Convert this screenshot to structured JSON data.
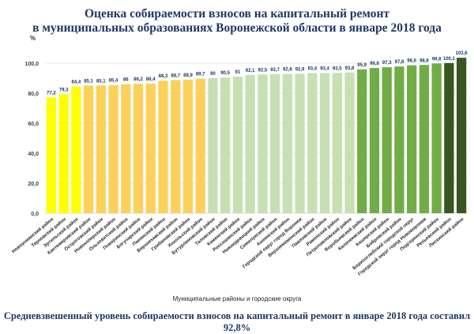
{
  "chart_data": {
    "type": "bar",
    "title": "Оценка собираемости взносов на капитальный ремонт",
    "subtitle": "в муниципальных образованиях Воронежской области в январе 2018 года",
    "ylabel": "%",
    "xlabel": "Муниципальные районы и городские округа",
    "ylim": [
      0,
      100
    ],
    "yticks": [
      "0,0",
      "20,0",
      "40,0",
      "60,0",
      "80,0",
      "100,0"
    ],
    "ytick_values": [
      0,
      20,
      40,
      60,
      80,
      100
    ],
    "grid": true,
    "categories": [
      "Новоусманский район",
      "Терновский район",
      "Эртильский район",
      "Кантемировский район",
      "Острогожский район",
      "Новохоперский район",
      "Ольховатский район",
      "Поворинский район",
      "Богучарский район",
      "Панинский район",
      "Верхнехавский район",
      "Грибановский район",
      "Хохольский район",
      "Бутурлиновский район",
      "Таловский район",
      "Каменский район",
      "Россошанский район",
      "Нижнедевицкий район",
      "Семилукский район",
      "Аннинский район",
      "Городской округ город Воронеж",
      "Верхнемамонский район",
      "Павловский район",
      "Рамонский район",
      "Петропавловский район",
      "Воробьевский район",
      "Калачеевский район",
      "Каширский район",
      "Бобровский район",
      "Борисоглебский городской округ",
      "Городской округ город Нововоронеж",
      "Подгоренский район",
      "Репьевский район",
      "Лискинский район"
    ],
    "values": [
      77.2,
      79.3,
      84.4,
      85.1,
      85.1,
      85.4,
      86,
      86.2,
      86.4,
      88.3,
      88.7,
      88.9,
      89.7,
      90,
      90.5,
      91,
      92.1,
      92.5,
      92.7,
      92.8,
      92.9,
      93.4,
      93.4,
      93.5,
      93.8,
      95.9,
      96.8,
      97.3,
      97.8,
      98.6,
      98.8,
      99.8,
      100.1,
      103.6
    ],
    "value_labels": [
      "77,2",
      "79,3",
      "84,4",
      "85,1",
      "85,1",
      "85,4",
      "86",
      "86,2",
      "86,4",
      "88,3",
      "88,7",
      "88,9",
      "89,7",
      "90",
      "90,5",
      "91",
      "92,1",
      "92,5",
      "92,7",
      "92,8",
      "92,9",
      "93,4",
      "93,4",
      "93,5",
      "93,8",
      "95,9",
      "96,8",
      "97,3",
      "97,8",
      "98,6",
      "98,8",
      "99,8",
      "100,1",
      "103,6"
    ],
    "colors": [
      "#ffff00",
      "#ffff00",
      "#ffff00",
      "#fbd15b",
      "#fbd15b",
      "#fbd15b",
      "#fbd15b",
      "#fbd15b",
      "#fbd15b",
      "#fbd15b",
      "#fbd15b",
      "#fbd15b",
      "#fbd15b",
      "#c6e0b4",
      "#c6e0b4",
      "#c6e0b4",
      "#c6e0b4",
      "#c6e0b4",
      "#c6e0b4",
      "#c6e0b4",
      "#c6e0b4",
      "#c6e0b4",
      "#c6e0b4",
      "#c6e0b4",
      "#c6e0b4",
      "#70ad47",
      "#70ad47",
      "#70ad47",
      "#70ad47",
      "#70ad47",
      "#70ad47",
      "#70ad47",
      "#375623",
      "#375623"
    ],
    "legend": "none"
  },
  "footer": "Средневзвешенный уровень собираемости взносов на капитальный ремонт в январе 2018 года составил 92,8%"
}
